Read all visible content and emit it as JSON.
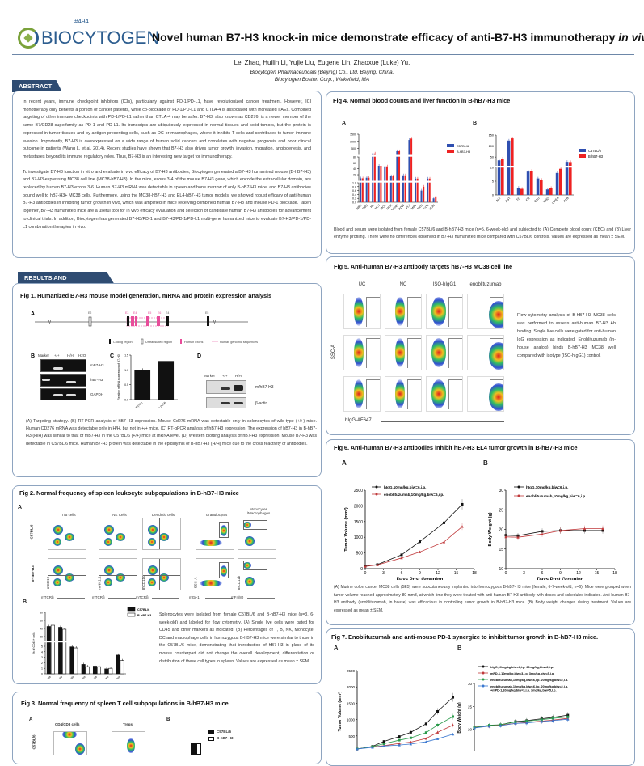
{
  "header": {
    "poster_number": "#494",
    "logo_text": "BIOCYTOGEN",
    "title": "Novel human B7-H3 knock-in mice demonstrate efficacy of anti-B7-H3 immunotherapy ",
    "title_italic": "in vivo",
    "authors": "Lei Zhao, Huilin Li, Yujie Liu, Eugene Lin, Zhaoxue (Luke) Yu.",
    "affiliation1": "Biocytogen Pharmaceuticals (Beijing) Co., Ltd, Beijing, China,",
    "affiliation2": "Biocytogen Boston Corp., Wakefield, MA"
  },
  "abstract": {
    "tab": "ABSTRACT",
    "p1": "In recent years, immune checkpoint inhibitors (ICIs), particularly against PD-1/PD-L1, have revolutionized cancer treatment. However, ICI monotherapy only benefits a portion of cancer patients, while co-blockade of PD-1/PD-L1 and CTLA-4 is associated with increased irAEs. Combined targeting of other immune checkpoints with PD-1/PD-L1 rather than CTLA-4 may be safer. B7-H3, also known as CD276, is a newer member of the same B7/CD28 superfamily as PD-1 and PD-L1. Its transcripts are ubiquitously expressed in normal tissues and solid tumors, but the protein is expressed in tumor tissues and by antigen-presenting cells, such as DC or macrophages, where it inhibits T cells and contributes to tumor immune evasion. Importantly, B7-H3 is overexpressed on a wide range of human solid cancers and correlates with negative prognosis and poor clinical outcome in patients (Wang L, et al. 2014). Recent studies have shown that B7-H3 also drives tumor growth, invasion, migration, angiogenesis, and metastases beyond its immune regulatory roles. Thus, B7-H3 is an interesting new target for immunotherapy.",
    "p2": "To investigate B7-H3 function in vitro and evaluate in vivo efficacy of B7-H3 antibodies, Biocytogen generated a B7-H3 humanized mouse (B-hB7-H3) and B7-H3-expressing MC38 cell line (MC38-hB7-H3). In the mice, exons 3-4 of the mouse B7-H3 gene, which encode the extracellular domain, are replaced by human B7-H3 exons 3-6. Human B7-H3 mRNA was detectable in spleen and bone marrow of only B-hB7-H3 mice, and B7-H3 antibodies bound well to hB7-H3+ MC38 cells. Furthermore, using the MC38-hB7-H3 and EL4-hB7-H3 tumor models, we showed robust efficacy of anti-human B7-H3 antibodies in inhibiting tumor growth in vivo, which was amplified in mice receiving combined human B7-H3 and mouse PD-1 blockade. Taken together, B7-H3 humanized mice are a useful tool for in vivo efficacy evaluation and selection of candidate human B7-H3 antibodies for advancement to clinical trials. In addition, Biocytogen has generated B7-H3/PD-1 and B7-H3/PD-1/PD-L1 multi-gene humanized mice to evaluate B7-H3/PD-1/PD-L1 combination therapies in vivo."
  },
  "results_tab": "RESULTS AND DISCUSSIONS",
  "fig1": {
    "title": "Fig 1. Humanized B7-H3 mouse model generation, mRNA and protein expression analysis",
    "panels": [
      "A",
      "B",
      "C",
      "D"
    ],
    "exon_labels": [
      "E2",
      "E3",
      "E4",
      "E5",
      "E6",
      "E4",
      "E5"
    ],
    "legend": [
      "Coding region",
      "Untranslated region",
      "Human exons",
      "Human genomic sequences"
    ],
    "gel_header": [
      "Marker",
      "+/+",
      "H/H",
      "H2O"
    ],
    "gel_rows": [
      "mB7-H3",
      "hB7-H3",
      "GAPDH"
    ],
    "wb_header": [
      "Marker",
      "+/+",
      "H/H"
    ],
    "wb_rows": [
      "m/hB7-H3",
      "β-actin"
    ],
    "caption": "(A) Targeting strategy. (B) RT-PCR analysis of hB7-H3 expression. Mouse Cd276 mRNA was detectable only in splenocytes of wild-type (+/+) mice. Human CD276 mRNA was detectable only in H/H, but not in +/+ mice. (C) RT-qPCR analysis of hB7-H3 expression. The expression of hB7-H3 in B-hB7-H3 (H/H) was similar to that of mB7-H3 in the C57BL/6 (+/+) mice at mRNA level. (D) Western blotting analysis of hB7-H3 expression. Mouse B7-H3 was detectable in C57BL/6 mice. Human B7-H3 protein was detectable in the epididymis of B-hB7-H3 (H/H) mice due to the cross reactivity of antibodies."
  },
  "fig2": {
    "title": "Fig 2. Normal frequency of spleen leukocyte subpopulations in B-hB7-H3 mice",
    "panels": [
      "A",
      "B"
    ],
    "columns": [
      "T/B cells",
      "NK Cells",
      "Dendritic cells",
      "Granulocytes",
      "Monocytes /Macrophages"
    ],
    "rows": [
      "C57BL/6",
      "B-hB7-H3"
    ],
    "y_axes": [
      "mCD19",
      "mNK1.1",
      "mCD11c",
      "SSC-A",
      "mCD11b"
    ],
    "x_axes": [
      "mTCRβ",
      "mTCRβ",
      "mTCRβ",
      "mGr-1",
      "mF4/80"
    ],
    "caption": "Splenocytes were isolated from female C57BL/6 and B-hB7-H3 mice (n=3, 6-week-old) and labeled for flow cytometry. (A) Single live cells were gated for CD45 and other markers as indicated. (B) Percentages of T, B, NK, Monocyte, DC and macrophage cells in homozygous B-hB7-H3 mice were similar to those in the C57BL/6 mice, demonstrating that introduction of hB7-H3 in place of its mouse counterpart did not change the overall development, differentiation or distribution of these cell types in spleen. Values are expressed as mean ± SEM."
  },
  "fig3": {
    "title": "Fig 3. Normal frequency of spleen T cell subpopulations in B-hB7-H3 mice",
    "panels": [
      "A",
      "B"
    ],
    "columns": [
      "CD4/CD8 cells",
      "Tregs"
    ],
    "row": "C57BL/6",
    "legend": [
      "C57BL/6",
      "B-hB7-H3"
    ]
  },
  "fig4": {
    "title": "Fig 4. Normal blood counts and liver function in B-hB7-H3 mice",
    "panels": [
      "A",
      "B"
    ],
    "caption": "Blood and serum were isolated from female C57BL/6 and B-hB7-H3 mice (n=5, 6-week-old) and subjected to (A) Complete blood count (CBC) and (B) Liver enzyme profiling. There were no differences observed in B7-H3 humanized mice compared with C57BL/6 controls. Values are expressed as mean ± SEM."
  },
  "fig5": {
    "title": "Fig 5. Anti-human B7-H3 antibody targets hB7-H3 MC38 cell line",
    "columns": [
      "UC",
      "NC",
      "ISO-hIgG1",
      "enoblituzumab"
    ],
    "y_axis": "SSC-A",
    "x_axis": "hIgG-AF647",
    "caption": "Flow cytometry analysis of B-hB7-H3 MC38 cells was performed to assess anti-human B7-H3 Ab binding. Single live cells were gated for anti-human IgG expression as indicated. Enoblituzumab (in-house analog) binds B-hB7-H3 MC38 well compared with isotype (ISO-hIgG1) control."
  },
  "fig6": {
    "title": "Fig 6. Anti-human B7-H3 antibodies inhibit hB7-H3 EL4 tumor growth in B-hB7-H3 mice",
    "panels": [
      "A",
      "B"
    ],
    "caption": "(A) Murine colon cancer MC38 cells (5E5) were subcutaneously implanted into homozygous B-hB7-H3 mice (female, 6-7-week-old, n=6). Mice were grouped when tumor volume reached approximately 80 mm3, at which time they were treated with anti-human B7-H3 antibody with doses and schedules indicated. Anti-human B7-H3 antibody (enoblituzumab, in house) was efficacious in controlling tumor growth in B-hB7-H3 mice. (B) Body weight changes during treatment. Values are expressed as mean ± SEM."
  },
  "fig7": {
    "title": "Fig 7. Enoblituzumab and anti-mouse PD-1 synergize to inhibit tumor growth in B-hB7-H3 mice.",
    "panels": [
      "A",
      "B"
    ]
  },
  "chart_data": [
    {
      "id": "fig1c",
      "type": "bar",
      "categories": [
        "C57BL/6 (+/+)",
        "B-hB7-H3 (H/H)"
      ],
      "values": [
        1.0,
        1.3
      ],
      "ylabel": "Relative mRNA expression of B7-H3",
      "ylim": [
        0,
        1.5
      ],
      "yticks": [
        "0.0",
        "0.5",
        "1.0",
        "1.5"
      ],
      "colors": [
        "#111111"
      ]
    },
    {
      "id": "fig2b",
      "type": "bar",
      "categories": [
        "B Cells",
        "T Cells",
        "NK Cells",
        "Granulocytes",
        "DC Cells",
        "Macrophages",
        "Monocytes"
      ],
      "series": [
        {
          "name": "C57BL/6",
          "values": [
            45,
            43,
            4.9,
            1.7,
            1.4,
            0.9,
            3.4
          ]
        },
        {
          "name": "B-hB7-H3",
          "values": [
            48,
            38,
            4.7,
            1.3,
            1.3,
            1.0,
            2.4
          ]
        }
      ],
      "ylabel": "% of CD45+ cells",
      "yticks": [
        "0",
        "1",
        "2",
        "3",
        "4",
        "5",
        "20",
        "40",
        "60",
        "80"
      ],
      "axis_break": [
        5,
        20
      ],
      "legend": "top-right"
    },
    {
      "id": "fig4a",
      "type": "bar",
      "categories": [
        "WBC",
        "RBC",
        "Hb",
        "HCT",
        "MCV",
        "MCH",
        "MCHC",
        "RDW",
        "PLT",
        "MPV",
        "NEU",
        "LYM",
        "MON"
      ],
      "series": [
        {
          "name": "C57BL/6",
          "values": [
            8,
            10,
            150,
            50,
            48,
            15,
            310,
            18,
            1100,
            7,
            0.6,
            7,
            0.2
          ]
        },
        {
          "name": "B-hB7-H3",
          "values": [
            8,
            10,
            150,
            50,
            48,
            15,
            310,
            18,
            1200,
            7,
            0.8,
            7,
            0.3
          ]
        }
      ],
      "yticks": [
        "0.0",
        "0.2",
        "0.4",
        "0.6",
        "0.8",
        "1.0",
        "20",
        "40",
        "60",
        "80",
        "500",
        "1000",
        "1500"
      ],
      "axis_break": [
        1,
        80
      ],
      "legend": "top-right",
      "colors": [
        "#2f4fb0",
        "#ee2222"
      ]
    },
    {
      "id": "fig4b",
      "type": "bar",
      "categories": [
        "ALT",
        "AST",
        "TC",
        "CR",
        "GLU",
        "TRIG",
        "UREA",
        "ALB"
      ],
      "series": [
        {
          "name": "C57BL/6",
          "values": [
            35,
            125,
            2.6,
            8.5,
            6,
            2,
            8,
            28
          ]
        },
        {
          "name": "B-hB7-H3",
          "values": [
            43,
            135,
            2.2,
            8.8,
            5.5,
            2.5,
            9.5,
            27
          ]
        }
      ],
      "yticks": [
        "0",
        "5",
        "10",
        "50",
        "100",
        "150"
      ],
      "axis_break": [
        10,
        10
      ],
      "legend": "top-right",
      "colors": [
        "#2f4fb0",
        "#ee2222"
      ]
    },
    {
      "id": "fig6a",
      "type": "line",
      "x": [
        0,
        2,
        6,
        9,
        13,
        16
      ],
      "series": [
        {
          "name": "hIgG,10mg/kg,biw=6,i.p.",
          "values": [
            80,
            130,
            440,
            860,
            1460,
            2050
          ],
          "color": "#111111"
        },
        {
          "name": "enoblituzumab,10mg/kg,biw=6,i.p.",
          "values": [
            70,
            120,
            340,
            530,
            850,
            1340
          ],
          "color": "#c0393b"
        }
      ],
      "xlabel": "Days Post Grouping",
      "ylabel": "Tumor Volume (mm³)",
      "xlim": [
        0,
        18
      ],
      "ylim": [
        0,
        2500
      ],
      "xticks": [
        0,
        3,
        6,
        9,
        12,
        15,
        18
      ],
      "yticks": [
        0,
        500,
        1000,
        1500,
        2000,
        2500
      ]
    },
    {
      "id": "fig6b",
      "type": "line",
      "x": [
        0,
        2,
        6,
        9,
        13,
        16
      ],
      "series": [
        {
          "name": "hIgG,10mg/kg,biw=6,i.p.",
          "values": [
            18.5,
            18.4,
            19.5,
            19.7,
            19.7,
            19.7
          ],
          "color": "#111111"
        },
        {
          "name": "enoblituzumab,10mg/kg,biw=6,i.p.",
          "values": [
            18.1,
            18.0,
            18.8,
            19.7,
            20.2,
            20.2
          ],
          "color": "#c0393b"
        }
      ],
      "xlabel": "Days Post Grouping",
      "ylabel": "Body Weight (g)",
      "xlim": [
        0,
        18
      ],
      "ylim": [
        10,
        30
      ],
      "xticks": [
        0,
        3,
        6,
        9,
        12,
        15,
        18
      ],
      "yticks": [
        10,
        15,
        20,
        25,
        30
      ]
    },
    {
      "id": "fig7a",
      "type": "line",
      "x": [
        0,
        4,
        7,
        11,
        14,
        18,
        21,
        25
      ],
      "series": [
        {
          "name": "hIgG,10mg/kg,biw=6,i.p. 20mg/kg,biw=2,i.p.",
          "values": [
            100,
            180,
            330,
            480,
            610,
            870,
            1250,
            1680
          ],
          "color": "#111111"
        },
        {
          "name": "mPD-1,10mg/kg,biw=3,i.p. 3mg/kg,biw=5,i.p.",
          "values": [
            100,
            160,
            200,
            270,
            310,
            420,
            610,
            830
          ],
          "color": "#c0393b"
        },
        {
          "name": "enoblituzumab,10mg/kg,biw=6,i.p. 20mg/kg,biw=2,i.p.",
          "values": [
            100,
            170,
            260,
            370,
            440,
            600,
            830,
            1090
          ],
          "color": "#2a9a4a"
        },
        {
          "name": "enoblituzumab,10mg/kg,biw=6,i.p. 20mg/kg,biw=2,i.p. +mPD-1,10mg/kg,biw=3,i.p. 3mg/kg,biw=5,i.p.",
          "values": [
            100,
            150,
            190,
            220,
            250,
            320,
            410,
            550
          ],
          "color": "#3a78d0"
        }
      ],
      "ylabel": "Tumor Volume (mm³)",
      "xlim": [
        0,
        27
      ],
      "ylim": [
        0,
        2500
      ],
      "xticks": [
        0,
        3,
        6,
        9,
        12,
        15,
        18,
        21,
        24,
        27
      ],
      "yticks": [
        0,
        500,
        1000,
        1500,
        2000,
        2500
      ]
    },
    {
      "id": "fig7b",
      "type": "line",
      "x": [
        0,
        4,
        7,
        11,
        14,
        18,
        21,
        25
      ],
      "series": [
        {
          "name": "hIgG,10mg/kg,biw=6,i.p. 20mg/kg,biw=2,i.p.",
          "values": [
            20.4,
            20.8,
            21.0,
            21.7,
            21.9,
            22.3,
            22.6,
            23.1
          ],
          "color": "#111111"
        },
        {
          "name": "mPD-1,10mg/kg,biw=3,i.p. 3mg/kg,biw=5,i.p.",
          "values": [
            20.5,
            20.7,
            20.9,
            21.3,
            21.5,
            21.8,
            22.0,
            22.4
          ],
          "color": "#c0393b"
        },
        {
          "name": "enoblituzumab,10mg/kg,biw=6,i.p. 20mg/kg,biw=2,i.p.",
          "values": [
            20.4,
            20.9,
            21.0,
            21.6,
            21.8,
            22.1,
            22.4,
            22.7
          ],
          "color": "#2a9a4a"
        },
        {
          "name": "enoblituzumab,10mg/kg,biw=6,i.p. 20mg/kg,biw=2,i.p. +mPD-1,10mg/kg,biw=3,i.p. 3mg/kg,biw=5,i.p.",
          "values": [
            20.3,
            20.7,
            20.8,
            21.3,
            21.4,
            21.7,
            21.9,
            22.2
          ],
          "color": "#3a78d0"
        }
      ],
      "ylabel": "Body Weight (g)",
      "xlim": [
        0,
        27
      ],
      "ylim": [
        15,
        30
      ],
      "xticks": [
        0,
        3,
        6,
        9,
        12,
        15,
        18,
        21,
        24,
        27
      ],
      "yticks": [
        15,
        20,
        25,
        30
      ],
      "legend": "top"
    }
  ]
}
